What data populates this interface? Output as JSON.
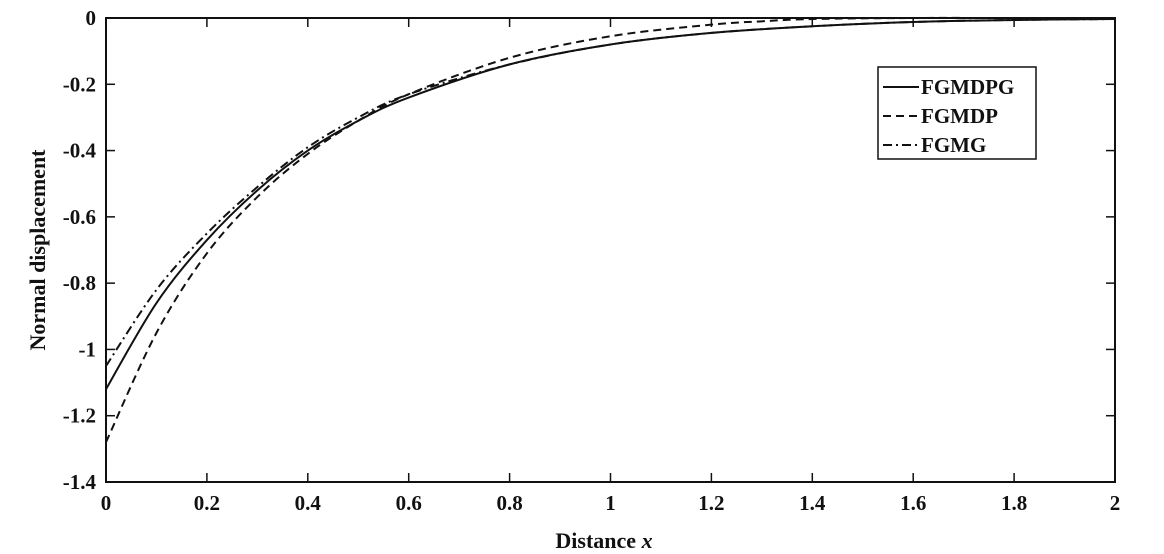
{
  "chart_data": {
    "type": "line",
    "xlabel": "Distance",
    "xlabel_var": "x",
    "ylabel": "Normal displacement",
    "xlim": [
      0,
      2
    ],
    "ylim": [
      -1.4,
      0
    ],
    "xticks": [
      "0",
      "0.2",
      "0.4",
      "0.6",
      "0.8",
      "1",
      "1.2",
      "1.4",
      "1.6",
      "1.8",
      "2"
    ],
    "yticks": [
      "0",
      "-0.2",
      "-0.4",
      "-0.6",
      "-0.8",
      "-1",
      "-1.2",
      "-1.4"
    ],
    "grid": false,
    "legend_position": "top-right",
    "series": [
      {
        "name": "FGMDPG",
        "style": "solid",
        "x": [
          0,
          0.1,
          0.2,
          0.3,
          0.4,
          0.5,
          0.6,
          0.8,
          1.0,
          1.2,
          1.4,
          1.6,
          1.8,
          2.0
        ],
        "values": [
          -1.12,
          -0.86,
          -0.67,
          -0.52,
          -0.4,
          -0.31,
          -0.24,
          -0.14,
          -0.08,
          -0.045,
          -0.025,
          -0.012,
          -0.006,
          -0.003
        ]
      },
      {
        "name": "FGMDP",
        "style": "dashed",
        "x": [
          0,
          0.1,
          0.2,
          0.3,
          0.4,
          0.5,
          0.6,
          0.8,
          1.0,
          1.2,
          1.3,
          1.4,
          1.6,
          1.8,
          2.0
        ],
        "values": [
          -1.28,
          -0.95,
          -0.71,
          -0.54,
          -0.41,
          -0.31,
          -0.23,
          -0.12,
          -0.055,
          -0.02,
          -0.01,
          -0.003,
          0,
          0,
          0
        ]
      },
      {
        "name": "FGMG",
        "style": "dashdot",
        "x": [
          0,
          0.1,
          0.2,
          0.3,
          0.4,
          0.5,
          0.6,
          0.8,
          1.0,
          1.2,
          1.4,
          1.6,
          1.8,
          2.0
        ],
        "values": [
          -1.05,
          -0.82,
          -0.65,
          -0.51,
          -0.39,
          -0.3,
          -0.23,
          -0.14,
          -0.08,
          -0.045,
          -0.025,
          -0.012,
          -0.006,
          -0.003
        ]
      }
    ]
  }
}
